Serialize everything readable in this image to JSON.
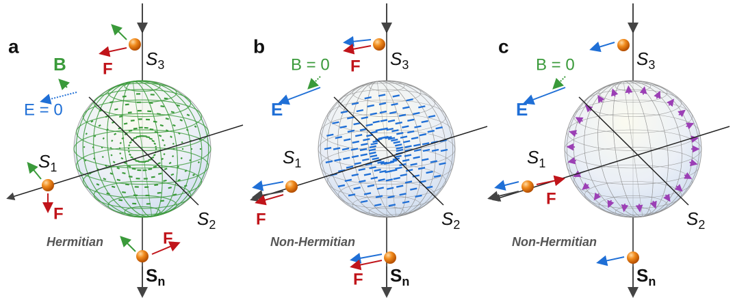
{
  "panels": [
    {
      "label": "a",
      "axis_labels": [
        {
          "base": "S",
          "sub": "3"
        },
        {
          "base": "S",
          "sub": "1"
        },
        {
          "base": "S",
          "sub": "2"
        },
        {
          "base": "S",
          "sub": "n"
        }
      ],
      "annotations": [
        "B",
        "E = 0",
        "F",
        "F",
        "F",
        "Hermitian"
      ]
    },
    {
      "label": "b",
      "axis_labels": [
        {
          "base": "S",
          "sub": "3"
        },
        {
          "base": "S",
          "sub": "1"
        },
        {
          "base": "S",
          "sub": "2"
        },
        {
          "base": "S",
          "sub": "n"
        }
      ],
      "annotations": [
        "B = 0",
        "E",
        "F",
        "F",
        "F",
        "Non-Hermitian"
      ]
    },
    {
      "label": "c",
      "axis_labels": [
        {
          "base": "S",
          "sub": "3"
        },
        {
          "base": "S",
          "sub": "1"
        },
        {
          "base": "S",
          "sub": "2"
        },
        {
          "base": "S",
          "sub": "n"
        }
      ],
      "annotations": [
        "B = 0",
        "E",
        "F",
        "Non-Hermitian"
      ]
    }
  ]
}
